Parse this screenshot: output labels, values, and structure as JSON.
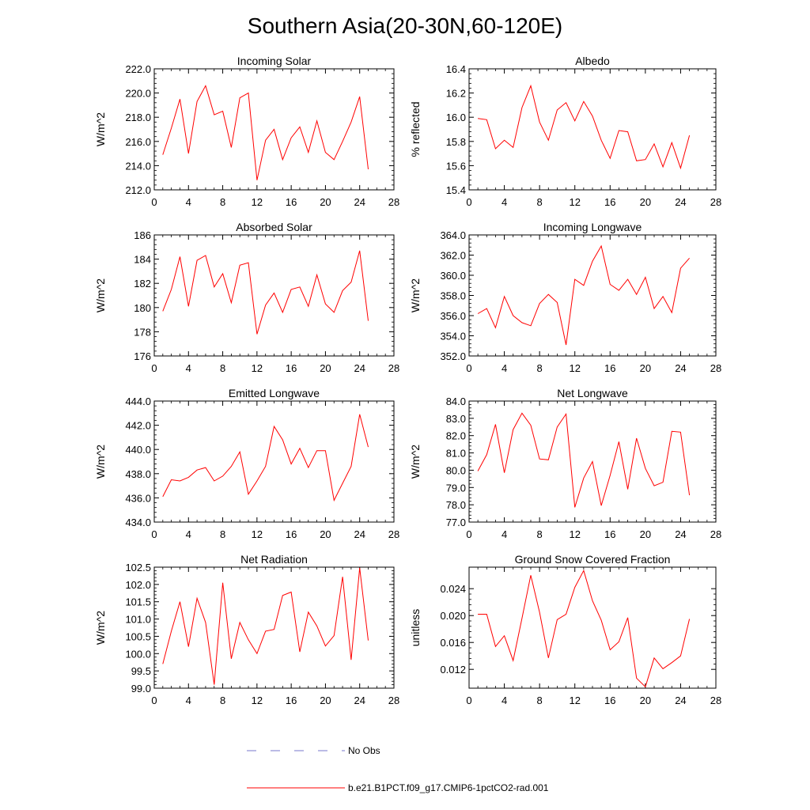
{
  "figure_title": "Southern Asia(20-30N,60-120E)",
  "legend": {
    "entries": [
      {
        "label": "No Obs",
        "color": "#7777cc",
        "style": "dashed"
      },
      {
        "label": "b.e21.B1PCT.f09_g17.CMIP6-1pctCO2-rad.001",
        "color": "#ff0000",
        "style": "solid"
      }
    ]
  },
  "chart_data": [
    {
      "type": "line",
      "title": "Incoming Solar",
      "ylabel": "W/m^2",
      "xlim": [
        0,
        28
      ],
      "xticks": [
        0,
        4,
        8,
        12,
        16,
        20,
        24,
        28
      ],
      "ylim": [
        212,
        222
      ],
      "yticks": [
        212,
        214,
        216,
        218,
        220,
        222
      ],
      "ytick_labels": [
        "212.0",
        "214.0",
        "216.0",
        "218.0",
        "220.0",
        "222.0"
      ],
      "x": [
        1,
        2,
        3,
        4,
        5,
        6,
        7,
        8,
        9,
        10,
        11,
        12,
        13,
        14,
        15,
        16,
        17,
        18,
        19,
        20,
        21,
        22,
        23,
        24,
        25
      ],
      "series": [
        {
          "color": "#ff0000",
          "values": [
            214.9,
            217.1,
            219.5,
            215.0,
            219.3,
            220.6,
            218.2,
            218.5,
            215.5,
            219.6,
            220.0,
            212.8,
            216.1,
            217.0,
            214.5,
            216.3,
            217.2,
            215.1,
            217.7,
            215.1,
            214.5,
            216.0,
            217.6,
            219.7,
            213.7
          ]
        }
      ]
    },
    {
      "type": "line",
      "title": "Albedo",
      "ylabel": "% reflected",
      "xlim": [
        0,
        28
      ],
      "xticks": [
        0,
        4,
        8,
        12,
        16,
        20,
        24,
        28
      ],
      "ylim": [
        15.4,
        16.4
      ],
      "yticks": [
        15.4,
        15.6,
        15.8,
        16.0,
        16.2,
        16.4
      ],
      "ytick_labels": [
        "15.4",
        "15.6",
        "15.8",
        "16.0",
        "16.2",
        "16.4"
      ],
      "x": [
        1,
        2,
        3,
        4,
        5,
        6,
        7,
        8,
        9,
        10,
        11,
        12,
        13,
        14,
        15,
        16,
        17,
        18,
        19,
        20,
        21,
        22,
        23,
        24,
        25
      ],
      "series": [
        {
          "color": "#ff0000",
          "values": [
            15.99,
            15.98,
            15.74,
            15.81,
            15.75,
            16.08,
            16.26,
            15.96,
            15.81,
            16.06,
            16.12,
            15.97,
            16.13,
            16.01,
            15.81,
            15.66,
            15.89,
            15.88,
            15.64,
            15.65,
            15.78,
            15.59,
            15.79,
            15.58,
            15.85
          ]
        }
      ]
    },
    {
      "type": "line",
      "title": "Absorbed Solar",
      "ylabel": "W/m^2",
      "xlim": [
        0,
        28
      ],
      "xticks": [
        0,
        4,
        8,
        12,
        16,
        20,
        24,
        28
      ],
      "ylim": [
        176,
        186
      ],
      "yticks": [
        176,
        178,
        180,
        182,
        184,
        186
      ],
      "ytick_labels": [
        "176",
        "178",
        "180",
        "182",
        "184",
        "186"
      ],
      "x": [
        1,
        2,
        3,
        4,
        5,
        6,
        7,
        8,
        9,
        10,
        11,
        12,
        13,
        14,
        15,
        16,
        17,
        18,
        19,
        20,
        21,
        22,
        23,
        24,
        25
      ],
      "series": [
        {
          "color": "#ff0000",
          "values": [
            179.7,
            181.5,
            184.2,
            180.1,
            183.9,
            184.3,
            181.7,
            182.8,
            180.4,
            183.5,
            183.7,
            177.8,
            180.2,
            181.2,
            179.6,
            181.5,
            181.7,
            180.1,
            182.7,
            180.3,
            179.6,
            181.4,
            182.1,
            184.7,
            178.9
          ]
        }
      ]
    },
    {
      "type": "line",
      "title": "Incoming Longwave",
      "ylabel": "W/m^2",
      "xlim": [
        0,
        28
      ],
      "xticks": [
        0,
        4,
        8,
        12,
        16,
        20,
        24,
        28
      ],
      "ylim": [
        352,
        364
      ],
      "yticks": [
        352,
        354,
        356,
        358,
        360,
        362,
        364
      ],
      "ytick_labels": [
        "352.0",
        "354.0",
        "356.0",
        "358.0",
        "360.0",
        "362.0",
        "364.0"
      ],
      "x": [
        1,
        2,
        3,
        4,
        5,
        6,
        7,
        8,
        9,
        10,
        11,
        12,
        13,
        14,
        15,
        16,
        17,
        18,
        19,
        20,
        21,
        22,
        23,
        24,
        25
      ],
      "series": [
        {
          "color": "#ff0000",
          "values": [
            356.2,
            356.7,
            354.8,
            357.9,
            356.0,
            355.3,
            355.0,
            357.2,
            358.1,
            357.3,
            353.1,
            359.6,
            359.0,
            361.4,
            362.9,
            359.1,
            358.5,
            359.6,
            358.1,
            359.8,
            356.7,
            357.9,
            356.3,
            360.7,
            361.7
          ]
        }
      ]
    },
    {
      "type": "line",
      "title": "Emitted Longwave",
      "ylabel": "W/m^2",
      "xlim": [
        0,
        28
      ],
      "xticks": [
        0,
        4,
        8,
        12,
        16,
        20,
        24,
        28
      ],
      "ylim": [
        434,
        444
      ],
      "yticks": [
        434,
        436,
        438,
        440,
        442,
        444
      ],
      "ytick_labels": [
        "434.0",
        "436.0",
        "438.0",
        "440.0",
        "442.0",
        "444.0"
      ],
      "x": [
        1,
        2,
        3,
        4,
        5,
        6,
        7,
        8,
        9,
        10,
        11,
        12,
        13,
        14,
        15,
        16,
        17,
        18,
        19,
        20,
        21,
        22,
        23,
        24,
        25
      ],
      "series": [
        {
          "color": "#ff0000",
          "values": [
            436.1,
            437.5,
            437.4,
            437.7,
            438.3,
            438.5,
            437.4,
            437.8,
            438.6,
            439.8,
            436.3,
            437.4,
            438.6,
            441.9,
            440.8,
            438.8,
            440.1,
            438.5,
            439.9,
            439.9,
            435.8,
            437.2,
            438.6,
            442.9,
            440.2
          ]
        }
      ]
    },
    {
      "type": "line",
      "title": "Net Longwave",
      "ylabel": "W/m^2",
      "xlim": [
        0,
        28
      ],
      "xticks": [
        0,
        4,
        8,
        12,
        16,
        20,
        24,
        28
      ],
      "ylim": [
        77,
        84
      ],
      "yticks": [
        77,
        78,
        79,
        80,
        81,
        82,
        83,
        84
      ],
      "ytick_labels": [
        "77.0",
        "78.0",
        "79.0",
        "80.0",
        "81.0",
        "82.0",
        "83.0",
        "84.0"
      ],
      "x": [
        1,
        2,
        3,
        4,
        5,
        6,
        7,
        8,
        9,
        10,
        11,
        12,
        13,
        14,
        15,
        16,
        17,
        18,
        19,
        20,
        21,
        22,
        23,
        24,
        25
      ],
      "series": [
        {
          "color": "#ff0000",
          "values": [
            79.95,
            80.9,
            82.65,
            79.85,
            82.35,
            83.3,
            82.6,
            80.65,
            80.6,
            82.5,
            83.25,
            77.85,
            79.55,
            80.5,
            77.95,
            79.7,
            81.65,
            78.9,
            81.85,
            80.1,
            79.1,
            79.3,
            82.25,
            82.2,
            78.55
          ]
        }
      ]
    },
    {
      "type": "line",
      "title": "Net Radiation",
      "ylabel": "W/m^2",
      "xlim": [
        0,
        28
      ],
      "xticks": [
        0,
        4,
        8,
        12,
        16,
        20,
        24,
        28
      ],
      "ylim": [
        99,
        102.5
      ],
      "yticks": [
        99,
        99.5,
        100,
        100.5,
        101,
        101.5,
        102,
        102.5
      ],
      "ytick_labels": [
        "99.0",
        "99.5",
        "100.0",
        "100.5",
        "101.0",
        "101.5",
        "102.0",
        "102.5"
      ],
      "x": [
        1,
        2,
        3,
        4,
        5,
        6,
        7,
        8,
        9,
        10,
        11,
        12,
        13,
        14,
        15,
        16,
        17,
        18,
        19,
        20,
        21,
        22,
        23,
        24,
        25
      ],
      "series": [
        {
          "color": "#ff0000",
          "values": [
            99.7,
            100.65,
            101.5,
            100.2,
            101.6,
            100.9,
            99.1,
            102.05,
            99.85,
            100.9,
            100.4,
            100.0,
            100.65,
            100.7,
            101.68,
            101.78,
            100.05,
            101.2,
            100.8,
            100.22,
            100.52,
            102.22,
            99.82,
            102.48,
            100.38
          ]
        }
      ]
    },
    {
      "type": "line",
      "title": "Ground Snow Covered Fraction",
      "ylabel": "unitless",
      "xlim": [
        0,
        28
      ],
      "xticks": [
        0,
        4,
        8,
        12,
        16,
        20,
        24,
        28
      ],
      "ylim": [
        0.0092,
        0.0272
      ],
      "yticks": [
        0.012,
        0.016,
        0.02,
        0.024
      ],
      "ytick_labels": [
        "0.012",
        "0.016",
        "0.020",
        "0.024"
      ],
      "x": [
        1,
        2,
        3,
        4,
        5,
        6,
        7,
        8,
        9,
        10,
        11,
        12,
        13,
        14,
        15,
        16,
        17,
        18,
        19,
        20,
        21,
        22,
        23,
        24,
        25
      ],
      "series": [
        {
          "color": "#ff0000",
          "values": [
            0.0202,
            0.0202,
            0.0154,
            0.017,
            0.0133,
            0.0196,
            0.026,
            0.0205,
            0.0137,
            0.0194,
            0.0202,
            0.0242,
            0.0267,
            0.0222,
            0.0193,
            0.0149,
            0.0161,
            0.0197,
            0.0107,
            0.0094,
            0.0137,
            0.0121,
            0.013,
            0.014,
            0.0195
          ]
        }
      ]
    }
  ]
}
